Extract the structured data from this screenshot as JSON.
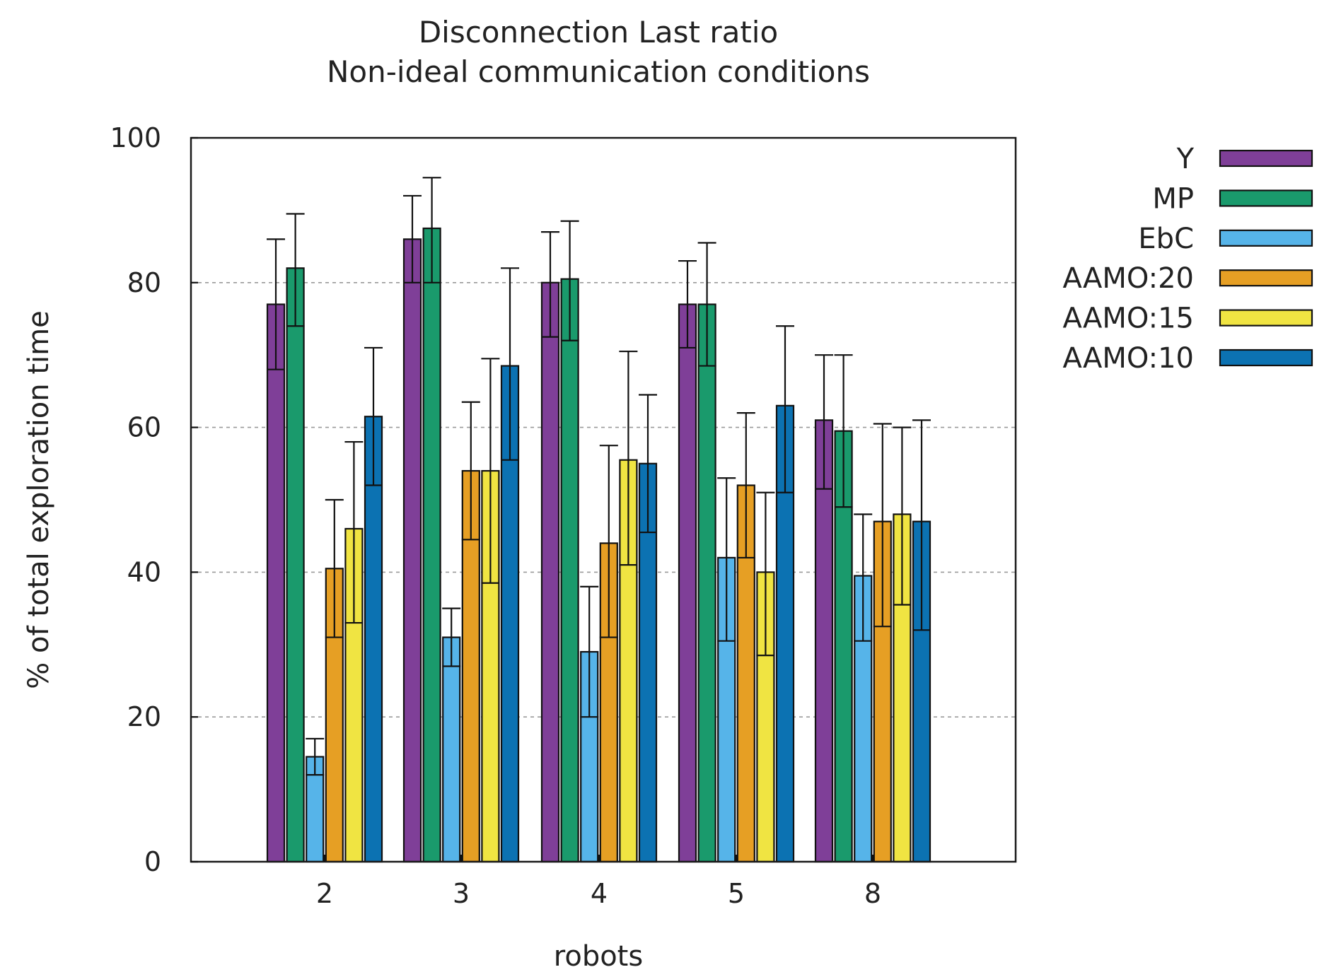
{
  "chart_data": {
    "type": "bar",
    "title": "Disconnection Last ratio",
    "subtitle": "Non-ideal communication conditions",
    "xlabel": "robots",
    "ylabel": "% of total exploration time",
    "ylim": [
      0,
      100
    ],
    "yticks": [
      0,
      20,
      40,
      60,
      80,
      100
    ],
    "grid": true,
    "legend_position": "outside-right",
    "categories": [
      "2",
      "3",
      "4",
      "5",
      "8"
    ],
    "series": [
      {
        "name": "Y",
        "color": "#7f3f98",
        "values": [
          77,
          86,
          80,
          77,
          61
        ],
        "err_low": [
          68,
          80,
          72.5,
          71,
          51.5
        ],
        "err_high": [
          86,
          92,
          87,
          83,
          70
        ]
      },
      {
        "name": "MP",
        "color": "#1a9a6c",
        "values": [
          82,
          87.5,
          80.5,
          77,
          59.5
        ],
        "err_low": [
          74,
          80,
          72,
          68.5,
          49
        ],
        "err_high": [
          89.5,
          94.5,
          88.5,
          85.5,
          70
        ]
      },
      {
        "name": "EbC",
        "color": "#56b4e9",
        "values": [
          14.5,
          31,
          29,
          42,
          39.5
        ],
        "err_low": [
          12,
          27,
          20,
          30.5,
          30.5
        ],
        "err_high": [
          17,
          35,
          38,
          53,
          48
        ]
      },
      {
        "name": "AAMO:20",
        "color": "#e69f24",
        "values": [
          40.5,
          54,
          44,
          52,
          47
        ],
        "err_low": [
          31,
          44.5,
          31,
          42,
          32.5
        ],
        "err_high": [
          50,
          63.5,
          57.5,
          62,
          60.5
        ]
      },
      {
        "name": "AAMO:15",
        "color": "#f0e442",
        "values": [
          46,
          54,
          55.5,
          40,
          48
        ],
        "err_low": [
          33,
          38.5,
          41,
          28.5,
          35.5
        ],
        "err_high": [
          58,
          69.5,
          70.5,
          51,
          60
        ]
      },
      {
        "name": "AAMO:10",
        "color": "#0c72b2",
        "values": [
          61.5,
          68.5,
          55,
          63,
          47
        ],
        "err_low": [
          52,
          55.5,
          45.5,
          51,
          32
        ],
        "err_high": [
          71,
          82,
          64.5,
          74,
          61
        ]
      }
    ]
  }
}
